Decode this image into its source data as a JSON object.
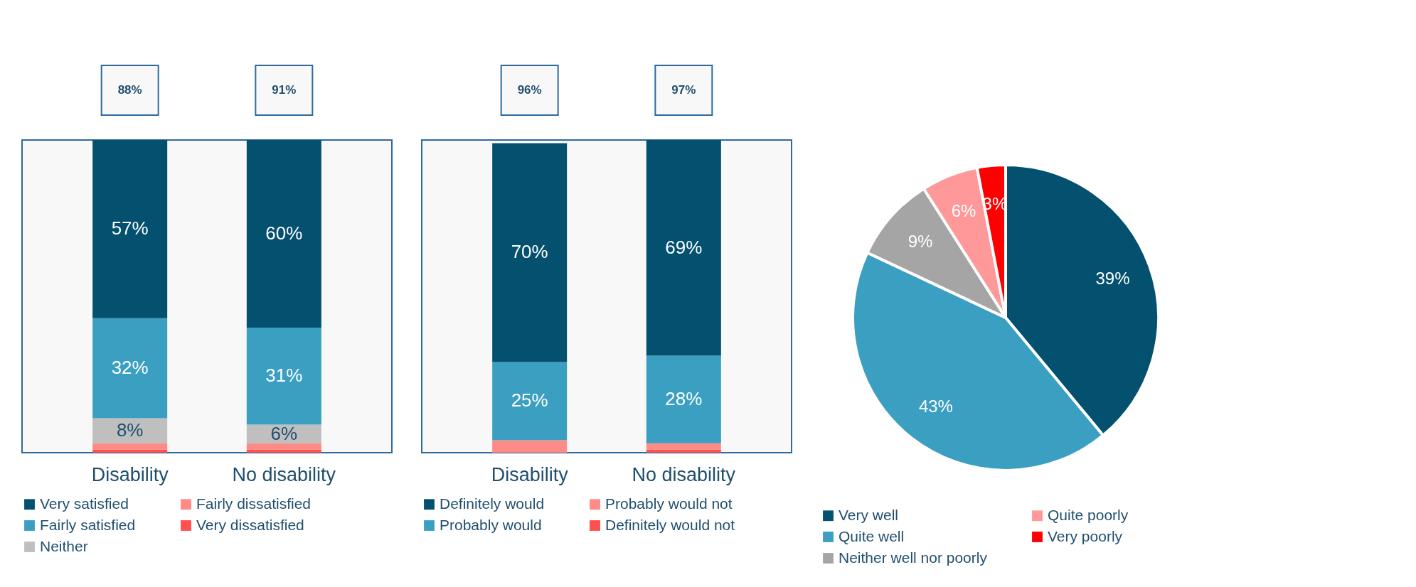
{
  "chart_data": [
    {
      "type": "bar",
      "stacked": true,
      "categories": [
        "Disability",
        "No disability"
      ],
      "legend": "bottom",
      "annotations": [
        "88%",
        "91%"
      ],
      "series": [
        {
          "name": "Very dissatisfied",
          "color": "#ff5050",
          "values": [
            1,
            1
          ],
          "value_labels": [
            null,
            null
          ]
        },
        {
          "name": "Fairly dissatisfied",
          "color": "#ff8b86",
          "values": [
            2,
            2
          ],
          "value_labels": [
            null,
            null
          ]
        },
        {
          "name": "Neither",
          "color": "#bfbfbf",
          "values": [
            8,
            6
          ],
          "value_labels": [
            "8%",
            "6%"
          ]
        },
        {
          "name": "Fairly satisfied",
          "color": "#3a9fc0",
          "values": [
            32,
            31
          ],
          "value_labels": [
            "32%",
            "31%"
          ]
        },
        {
          "name": "Very satisfied",
          "color": "#03506f",
          "values": [
            57,
            60
          ],
          "value_labels": [
            "57%",
            "60%"
          ]
        }
      ]
    },
    {
      "type": "bar",
      "stacked": true,
      "categories": [
        "Disability",
        "No disability"
      ],
      "legend": "bottom",
      "annotations": [
        "96%",
        "97%"
      ],
      "series": [
        {
          "name": "Definitely would not",
          "color": "#ff5050",
          "values": [
            0,
            1
          ],
          "value_labels": [
            null,
            null
          ]
        },
        {
          "name": "Probably would not",
          "color": "#ff8b86",
          "values": [
            4,
            2
          ],
          "value_labels": [
            null,
            null
          ]
        },
        {
          "name": "Probably would",
          "color": "#3a9fc0",
          "values": [
            25,
            28
          ],
          "value_labels": [
            "25%",
            "28%"
          ]
        },
        {
          "name": "Definitely would",
          "color": "#03506f",
          "values": [
            70,
            69
          ],
          "value_labels": [
            "70%",
            "69%"
          ]
        }
      ]
    },
    {
      "type": "pie",
      "categories": [
        "Very well",
        "Quite well",
        "Neither well nor poorly",
        "Quite poorly",
        "Very poorly"
      ],
      "values": [
        39,
        43,
        9,
        6,
        3
      ],
      "colors": [
        "#03506f",
        "#3a9fc0",
        "#a5a5a5",
        "#ff9999",
        "#ff0000"
      ],
      "value_labels": [
        "39%",
        "43%",
        "9%",
        "6%",
        "3%"
      ],
      "legend": "bottom"
    }
  ]
}
